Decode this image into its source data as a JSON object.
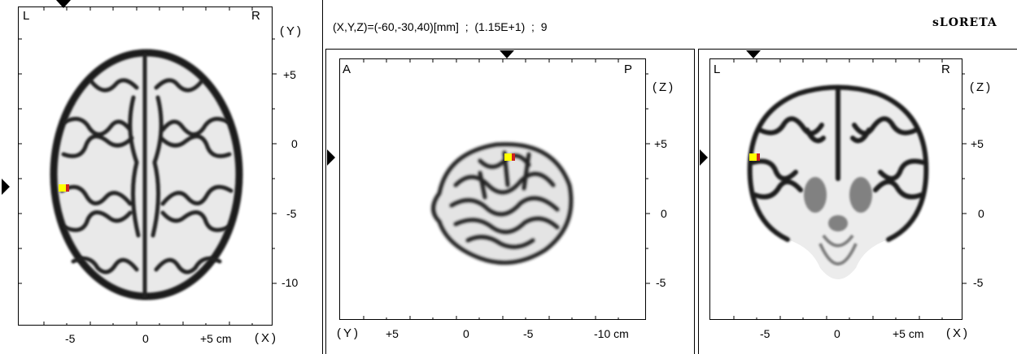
{
  "header": {
    "coords": "(X,Y,Z)=(-60,-30,40)[mm]  ;  (1.15E+1)  ;  9",
    "brand": "sLORETA"
  },
  "axial": {
    "left_corner": "L",
    "right_corner": "R",
    "vertical_axis_label": "(Y)",
    "vertical_ticks": [
      "+5",
      "0",
      "-5",
      "-10"
    ],
    "horizontal_ticks": [
      "-5",
      "0",
      "+5 cm"
    ],
    "horizontal_axis_label": "(X)"
  },
  "sagittal": {
    "left_corner": "A",
    "right_corner": "P",
    "vertical_axis_label": "(Z)",
    "vertical_ticks": [
      "+5",
      "0",
      "-5"
    ],
    "horizontal_axis_label": "(Y)",
    "horizontal_ticks": [
      "+5",
      "0",
      "-5",
      "-10 cm"
    ]
  },
  "coronal": {
    "left_corner": "L",
    "right_corner": "R",
    "vertical_axis_label": "(Z)",
    "vertical_ticks": [
      "+5",
      "0",
      "-5"
    ],
    "horizontal_ticks": [
      "-5",
      "0",
      "+5 cm"
    ],
    "horizontal_axis_label": "(X)"
  },
  "colors": {
    "activation_peak": "#ffff00",
    "activation_edge": "#cc2222",
    "brain_tissue": "#1a1a1a"
  }
}
